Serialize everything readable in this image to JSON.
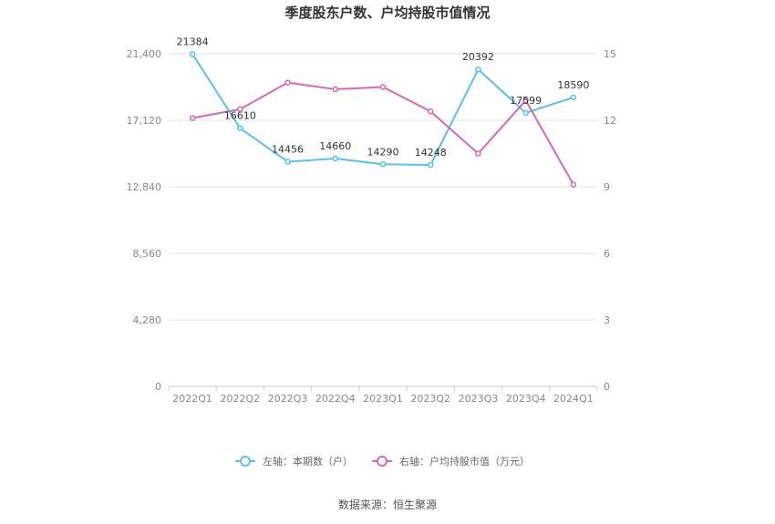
{
  "chart_data": {
    "type": "line",
    "title": "季度股东户数、户均持股市值情况",
    "categories": [
      "2022Q1",
      "2022Q2",
      "2022Q3",
      "2022Q4",
      "2023Q1",
      "2023Q2",
      "2023Q3",
      "2023Q4",
      "2024Q1"
    ],
    "y_left": {
      "ticks": [
        "0",
        "4,280",
        "8,560",
        "12,840",
        "17,120",
        "21,400"
      ],
      "min": 0,
      "max": 21400
    },
    "y_right": {
      "ticks": [
        "0",
        "3",
        "6",
        "9",
        "12",
        "15"
      ],
      "min": 0,
      "max": 15
    },
    "grid": true,
    "legend_position": "bottom",
    "series": [
      {
        "name": "左轴：本期数（户）",
        "axis": "left",
        "color": "#5bc0eb",
        "values": [
          21384,
          16610,
          14456,
          14660,
          14290,
          14248,
          20392,
          17599,
          18590
        ],
        "labels": [
          "21384",
          "16610",
          "14456",
          "14660",
          "14290",
          "14248",
          "20392",
          "17599",
          "18590"
        ]
      },
      {
        "name": "右轴：户均持股市值（万元）",
        "axis": "right",
        "color": "#d36ab0",
        "values": [
          12.1,
          12.5,
          13.7,
          13.4,
          13.5,
          12.4,
          10.5,
          12.9,
          9.1
        ]
      }
    ]
  },
  "source": "数据来源：恒生聚源"
}
